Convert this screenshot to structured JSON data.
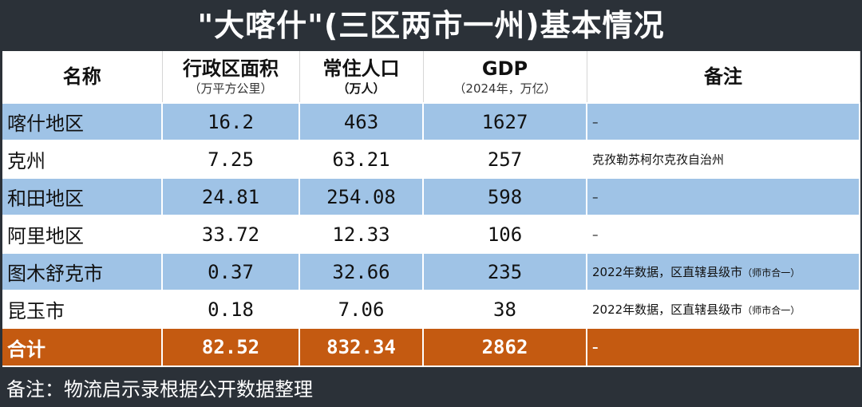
{
  "title": "\"大喀什\"(三区两市一州)基本情况",
  "columns": [
    {
      "label": "名称",
      "sub": ""
    },
    {
      "label": "行政区面积",
      "sub": "（万平方公里）"
    },
    {
      "label": "常住人口",
      "sub": "（万人）"
    },
    {
      "label": "GDP",
      "sub": "（2024年，万亿）"
    },
    {
      "label": "备注",
      "sub": ""
    }
  ],
  "rows": [
    {
      "name": "喀什地区",
      "area": "16.2",
      "population": "463",
      "gdp": "1627",
      "note": "–",
      "note_extra": ""
    },
    {
      "name": "克州",
      "area": "7.25",
      "population": "63.21",
      "gdp": "257",
      "note": "克孜勒苏柯尔克孜自治州",
      "note_extra": ""
    },
    {
      "name": "和田地区",
      "area": "24.81",
      "population": "254.08",
      "gdp": "598",
      "note": "–",
      "note_extra": ""
    },
    {
      "name": "阿里地区",
      "area": "33.72",
      "population": "12.33",
      "gdp": "106",
      "note": "–",
      "note_extra": ""
    },
    {
      "name": "图木舒克市",
      "area": "0.37",
      "population": "32.66",
      "gdp": "235",
      "note": "2022年数据，区直辖县级市",
      "note_extra": "（师市合一）"
    },
    {
      "name": "昆玉市",
      "area": "0.18",
      "population": "7.06",
      "gdp": "38",
      "note": "2022年数据，区直辖县级市",
      "note_extra": "（师市合一）"
    }
  ],
  "total": {
    "name": "合计",
    "area": "82.52",
    "population": "832.34",
    "gdp": "2862",
    "note": "–"
  },
  "footer": "备注：物流启示录根据公开数据整理",
  "colors": {
    "background": "#2b3138",
    "blue_row": "#9fc3e6",
    "total_row": "#c45a11"
  }
}
